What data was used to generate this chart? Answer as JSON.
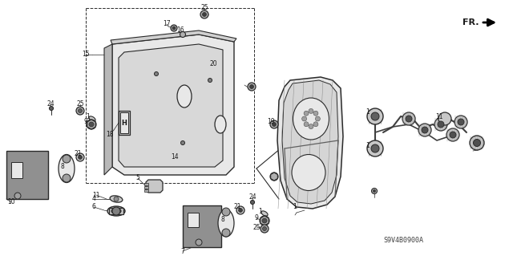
{
  "background_color": "#ffffff",
  "fig_width": 6.4,
  "fig_height": 3.19,
  "dpi": 100,
  "watermark": "S9V4B0900A",
  "line_color": "#2a2a2a",
  "text_color": "#1a1a1a",
  "gray_fill": "#c8c8c8",
  "light_fill": "#e8e8e8",
  "mid_fill": "#b0b0b0"
}
